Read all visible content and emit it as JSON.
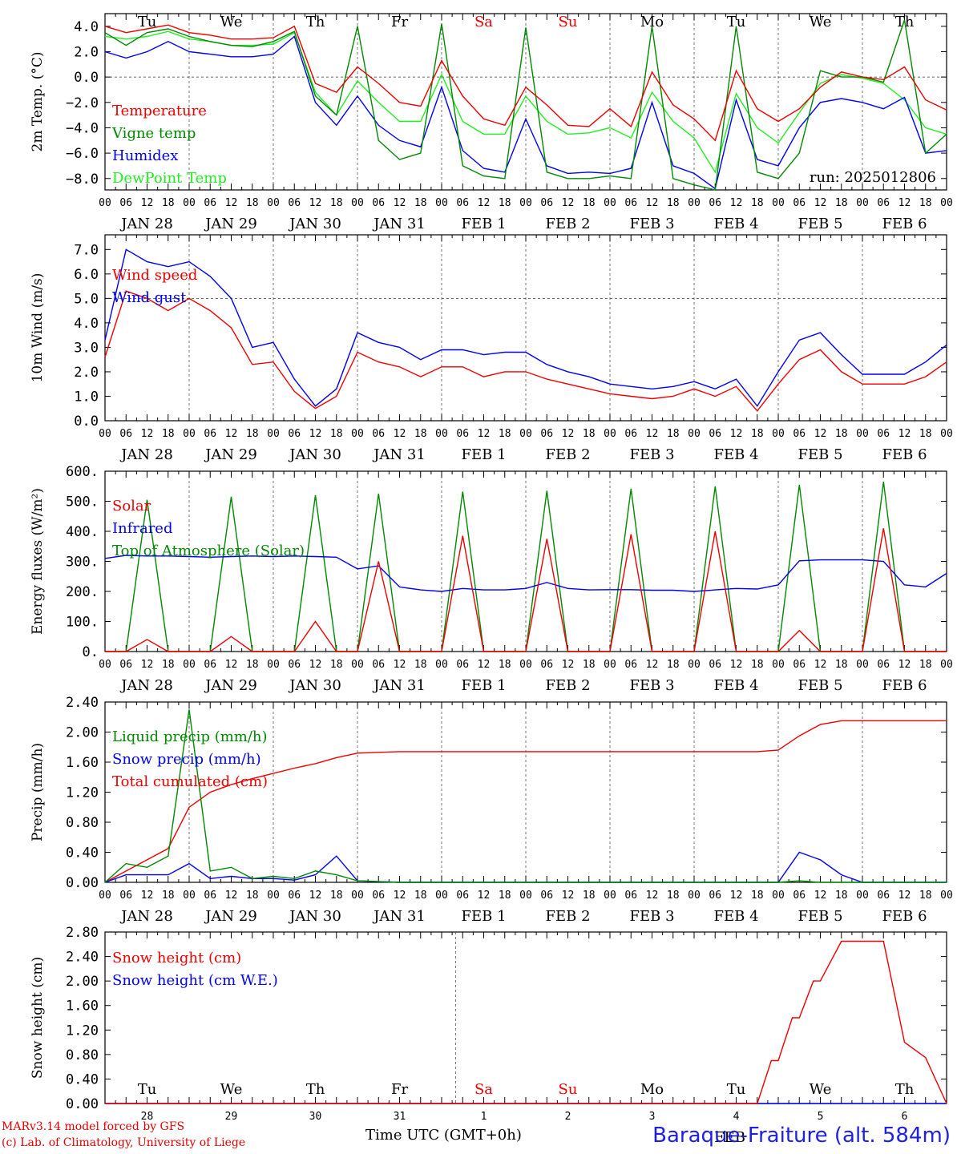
{
  "footer": {
    "model_credit": "MARv3.14 model forced by GFS",
    "lab_credit": "(c) Lab. of Climatology, University of Liege",
    "xaxis_title": "Time UTC (GMT+0h)",
    "station": "Baraque-Fraiture (alt. 584m)"
  },
  "colors": {
    "red": "#ee0000",
    "green": "#008800",
    "blue": "#0000ee",
    "light_green": "#22ee22",
    "grid": "#555555"
  },
  "chart_data": [
    {
      "type": "line",
      "ylabel": "2m Temp. (°C)",
      "ylim": [
        -8.9,
        5.0
      ],
      "yticks": [
        "4.0",
        "2.0",
        "0.0",
        "−2.0",
        "−4.0",
        "−6.0",
        "−8.0"
      ],
      "ytick_values": [
        4,
        2,
        0,
        -2,
        -4,
        -6,
        -8
      ],
      "hline": 0,
      "annotation": "run: 2025012806",
      "weekdays": [
        "Tu",
        "We",
        "Th",
        "Fr",
        "Sa",
        "Su",
        "Mo",
        "Tu",
        "We",
        "Th"
      ],
      "weekday_colors": [
        "black",
        "black",
        "black",
        "black",
        "red",
        "red",
        "black",
        "black",
        "black",
        "black"
      ],
      "x_hours": [
        0,
        6,
        12,
        18,
        24,
        30,
        36,
        42,
        48,
        54,
        60,
        66,
        72,
        78,
        84,
        90,
        96,
        102,
        108,
        114,
        120,
        126,
        132,
        138,
        144,
        150,
        156,
        162,
        168,
        174,
        180,
        186,
        192,
        198,
        204,
        210,
        216,
        222,
        228,
        234,
        240
      ],
      "series": [
        {
          "name": "Temperature",
          "color": "#ee0000",
          "values": [
            4.0,
            3.5,
            3.8,
            4.1,
            3.5,
            3.3,
            3.0,
            3.0,
            3.1,
            4.0,
            -0.5,
            -1.2,
            0.8,
            -0.5,
            -2.0,
            -2.3,
            1.3,
            -1.5,
            -3.3,
            -3.8,
            -0.8,
            -2.2,
            -3.8,
            -3.9,
            -2.5,
            -3.9,
            0.4,
            -2.2,
            -3.3,
            -5.0,
            0.5,
            -2.5,
            -3.5,
            -2.5,
            -0.8,
            0.4,
            0.0,
            -0.2,
            0.8,
            -1.8,
            -2.6
          ]
        },
        {
          "name": "Vigne temp",
          "color": "#008800",
          "values": [
            3.5,
            2.5,
            3.5,
            3.8,
            3.2,
            2.8,
            2.5,
            2.4,
            2.8,
            3.6,
            -1.5,
            -3.0,
            4.0,
            -5.0,
            -6.5,
            -6.0,
            4.2,
            -7.0,
            -7.8,
            -8.0,
            3.9,
            -7.5,
            -8.0,
            -8.0,
            -7.8,
            -8.0,
            4.0,
            -8.0,
            -8.5,
            -9.0,
            4.0,
            -7.5,
            -8.0,
            -6.0,
            0.5,
            0.0,
            0.0,
            -0.4,
            4.5,
            -6.0,
            -4.5
          ]
        },
        {
          "name": "Humidex",
          "color": "#0000ee",
          "values": [
            2.0,
            1.5,
            2.0,
            2.8,
            2.0,
            1.8,
            1.6,
            1.6,
            1.8,
            3.2,
            -2.0,
            -3.8,
            -1.5,
            -3.8,
            -5.0,
            -5.5,
            -0.8,
            -5.8,
            -7.2,
            -7.5,
            -3.3,
            -7.0,
            -7.6,
            -7.5,
            -7.6,
            -7.2,
            -2.0,
            -7.0,
            -7.6,
            -8.8,
            -1.8,
            -6.5,
            -7.0,
            -4.0,
            -2.0,
            -1.7,
            -2.0,
            -2.5,
            -1.6,
            -6.0,
            -5.8
          ]
        },
        {
          "name": "DewPoint Temp",
          "color": "#22ee22",
          "values": [
            3.2,
            3.0,
            3.2,
            3.6,
            3.0,
            2.8,
            2.5,
            2.5,
            2.6,
            3.5,
            -1.2,
            -3.0,
            -0.3,
            -2.0,
            -3.5,
            -3.5,
            0.2,
            -3.5,
            -4.5,
            -4.5,
            -1.5,
            -3.5,
            -4.5,
            -4.4,
            -4.0,
            -4.8,
            -1.2,
            -3.5,
            -4.8,
            -7.5,
            -1.3,
            -4.0,
            -5.2,
            -2.8,
            -0.5,
            0.2,
            -0.1,
            -0.5,
            -1.8,
            -4.0,
            -4.5
          ]
        }
      ]
    },
    {
      "type": "line",
      "ylabel": "10m Wind (m/s)",
      "ylim": [
        0,
        7.6
      ],
      "yticks": [
        "0.0",
        "1.0",
        "2.0",
        "3.0",
        "4.0",
        "5.0",
        "6.0",
        "7.0"
      ],
      "ytick_values": [
        0,
        1,
        2,
        3,
        4,
        5,
        6,
        7
      ],
      "hline": 5,
      "x_hours": [
        0,
        6,
        12,
        18,
        24,
        30,
        36,
        42,
        48,
        54,
        60,
        66,
        72,
        78,
        84,
        90,
        96,
        102,
        108,
        114,
        120,
        126,
        132,
        138,
        144,
        150,
        156,
        162,
        168,
        174,
        180,
        186,
        192,
        198,
        204,
        210,
        216,
        222,
        228,
        234,
        240
      ],
      "series": [
        {
          "name": "Wind speed",
          "color": "#ee0000",
          "values": [
            2.6,
            5.3,
            5.0,
            4.5,
            5.0,
            4.5,
            3.8,
            2.3,
            2.4,
            1.2,
            0.5,
            1.0,
            2.8,
            2.4,
            2.2,
            1.8,
            2.2,
            2.2,
            1.8,
            2.0,
            2.0,
            1.7,
            1.5,
            1.3,
            1.1,
            1.0,
            0.9,
            1.0,
            1.3,
            1.0,
            1.4,
            0.4,
            1.5,
            2.5,
            2.9,
            2.0,
            1.5,
            1.5,
            1.5,
            1.8,
            2.4
          ]
        },
        {
          "name": "Wind gust",
          "color": "#0000ee",
          "values": [
            3.3,
            7.0,
            6.5,
            6.3,
            6.5,
            5.9,
            5.0,
            3.0,
            3.2,
            1.7,
            0.6,
            1.3,
            3.6,
            3.2,
            3.0,
            2.5,
            2.9,
            2.9,
            2.7,
            2.8,
            2.8,
            2.3,
            2.0,
            1.8,
            1.5,
            1.4,
            1.3,
            1.4,
            1.6,
            1.3,
            1.7,
            0.6,
            2.0,
            3.3,
            3.6,
            2.7,
            1.9,
            1.9,
            1.9,
            2.4,
            3.1
          ]
        }
      ]
    },
    {
      "type": "line",
      "ylabel": "Energy fluxes (W/m²)",
      "ylim": [
        0,
        600
      ],
      "yticks": [
        "0.",
        "100.",
        "200.",
        "300.",
        "400.",
        "500.",
        "600."
      ],
      "ytick_values": [
        0,
        100,
        200,
        300,
        400,
        500,
        600
      ],
      "x_hours": [
        0,
        6,
        12,
        18,
        24,
        30,
        36,
        42,
        48,
        54,
        60,
        66,
        72,
        78,
        84,
        90,
        96,
        102,
        108,
        114,
        120,
        126,
        132,
        138,
        144,
        150,
        156,
        162,
        168,
        174,
        180,
        186,
        192,
        198,
        204,
        210,
        216,
        222,
        228,
        234,
        240
      ],
      "series": [
        {
          "name": "Solar",
          "color": "#ee0000",
          "values": [
            0,
            0,
            40,
            0,
            0,
            0,
            50,
            0,
            0,
            0,
            100,
            0,
            0,
            300,
            0,
            0,
            0,
            385,
            0,
            0,
            0,
            375,
            0,
            0,
            0,
            390,
            0,
            0,
            0,
            400,
            0,
            0,
            0,
            70,
            0,
            0,
            0,
            410,
            0,
            0,
            0
          ]
        },
        {
          "name": "Infrared",
          "color": "#0000ee",
          "values": [
            310,
            320,
            318,
            318,
            316,
            314,
            316,
            318,
            316,
            318,
            316,
            314,
            275,
            285,
            215,
            205,
            200,
            210,
            205,
            205,
            210,
            230,
            210,
            205,
            206,
            206,
            204,
            204,
            200,
            205,
            210,
            208,
            222,
            302,
            305,
            305,
            305,
            300,
            222,
            215,
            260
          ]
        },
        {
          "name": "Top of Atmosphere (Solar)",
          "color": "#008800",
          "values": [
            0,
            0,
            505,
            0,
            0,
            0,
            515,
            0,
            0,
            0,
            520,
            0,
            0,
            525,
            0,
            0,
            0,
            532,
            0,
            0,
            0,
            535,
            0,
            0,
            0,
            542,
            0,
            0,
            0,
            550,
            0,
            0,
            0,
            555,
            0,
            0,
            0,
            565,
            0,
            0,
            0
          ]
        }
      ]
    },
    {
      "type": "line",
      "ylabel": "Precip (mm/h)",
      "ylim": [
        0,
        2.4
      ],
      "yticks": [
        "0.00",
        "0.40",
        "0.80",
        "1.20",
        "1.60",
        "2.00",
        "2.40"
      ],
      "ytick_values": [
        0,
        0.4,
        0.8,
        1.2,
        1.6,
        2.0,
        2.4
      ],
      "x_hours": [
        0,
        6,
        12,
        18,
        24,
        30,
        36,
        42,
        48,
        54,
        60,
        66,
        72,
        78,
        84,
        90,
        96,
        102,
        108,
        114,
        120,
        126,
        132,
        138,
        144,
        150,
        156,
        162,
        168,
        174,
        180,
        186,
        192,
        198,
        204,
        210,
        216,
        222,
        228,
        234,
        240
      ],
      "series": [
        {
          "name": "Liquid precip (mm/h)",
          "color": "#008800",
          "values": [
            0,
            0.25,
            0.2,
            0.35,
            2.3,
            0.15,
            0.2,
            0.05,
            0.08,
            0.05,
            0.15,
            0.1,
            0.02,
            0.01,
            0,
            0,
            0,
            0,
            0,
            0,
            0,
            0,
            0,
            0,
            0,
            0,
            0,
            0,
            0,
            0,
            0,
            0,
            0,
            0.02,
            0,
            0,
            0,
            0,
            0,
            0,
            0
          ]
        },
        {
          "name": "Snow precip (mm/h)",
          "color": "#0000ee",
          "values": [
            0,
            0.1,
            0.1,
            0.1,
            0.25,
            0.05,
            0.08,
            0.05,
            0.05,
            0.03,
            0.1,
            0.35,
            0.02,
            0.01,
            0,
            0,
            0,
            0,
            0,
            0,
            0,
            0,
            0,
            0,
            0,
            0,
            0,
            0,
            0,
            0,
            0,
            0,
            0,
            0.4,
            0.3,
            0.1,
            0,
            0,
            0,
            0,
            0
          ]
        },
        {
          "name": "Total cumulated (cm)",
          "color": "#ee0000",
          "values": [
            0,
            0.15,
            0.3,
            0.45,
            1.0,
            1.2,
            1.3,
            1.38,
            1.45,
            1.52,
            1.58,
            1.66,
            1.72,
            1.73,
            1.74,
            1.74,
            1.74,
            1.74,
            1.74,
            1.74,
            1.74,
            1.74,
            1.74,
            1.74,
            1.74,
            1.74,
            1.74,
            1.74,
            1.74,
            1.74,
            1.74,
            1.74,
            1.76,
            1.95,
            2.1,
            2.15,
            2.15,
            2.15,
            2.15,
            2.15,
            2.15
          ]
        }
      ]
    },
    {
      "type": "line",
      "ylabel": "Snow height (cm)",
      "ylim": [
        0,
        2.8
      ],
      "yticks": [
        "0.00",
        "0.40",
        "0.80",
        "1.20",
        "1.60",
        "2.00",
        "2.40",
        "2.80"
      ],
      "ytick_values": [
        0,
        0.4,
        0.8,
        1.2,
        1.6,
        2.0,
        2.4,
        2.8
      ],
      "weekdays": [
        "Tu",
        "We",
        "Th",
        "Fr",
        "Sa",
        "Su",
        "Mo",
        "Tu",
        "We",
        "Th"
      ],
      "weekday_colors": [
        "black",
        "black",
        "black",
        "black",
        "red",
        "red",
        "black",
        "black",
        "black",
        "black"
      ],
      "day_numbers": [
        "28",
        "29",
        "30",
        "31",
        "1",
        "2",
        "3",
        "4",
        "5",
        "6"
      ],
      "month_label": "FEB",
      "x_hours": [
        0,
        12,
        24,
        36,
        48,
        60,
        72,
        84,
        96,
        108,
        120,
        132,
        144,
        156,
        168,
        180,
        186,
        190,
        192,
        196,
        198,
        202,
        204,
        210,
        216,
        222,
        228,
        234,
        240
      ],
      "series": [
        {
          "name": "Snow height (cm)",
          "color": "#ee0000",
          "values": [
            0,
            0,
            0,
            0,
            0,
            0,
            0,
            0,
            0,
            0,
            0,
            0,
            0,
            0,
            0,
            0,
            0,
            0.7,
            0.7,
            1.4,
            1.4,
            2.0,
            2.0,
            2.65,
            2.65,
            2.65,
            1.0,
            0.75,
            0
          ]
        },
        {
          "name": "Snow height (cm W.E.)",
          "color": "#0000ee",
          "values": [
            0,
            0,
            0,
            0,
            0,
            0,
            0,
            0,
            0,
            0,
            0,
            0,
            0,
            0,
            0,
            0,
            0,
            0,
            0,
            0,
            0,
            0,
            0,
            0,
            0,
            0,
            0,
            0,
            0
          ]
        }
      ]
    }
  ],
  "date_axis": {
    "hour_ticks": [
      "00",
      "06",
      "12",
      "18"
    ],
    "days": [
      "JAN 28",
      "JAN 29",
      "JAN 30",
      "JAN 31",
      "FEB  1",
      "FEB  2",
      "FEB  3",
      "FEB  4",
      "FEB  5",
      "FEB  6"
    ]
  }
}
